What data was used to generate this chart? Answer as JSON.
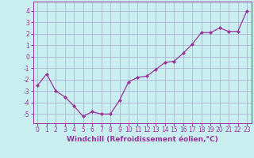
{
  "x": [
    0,
    1,
    2,
    3,
    4,
    5,
    6,
    7,
    8,
    9,
    10,
    11,
    12,
    13,
    14,
    15,
    16,
    17,
    18,
    19,
    20,
    21,
    22,
    23
  ],
  "y": [
    -2.5,
    -1.5,
    -3.0,
    -3.5,
    -4.3,
    -5.2,
    -4.8,
    -5.0,
    -5.0,
    -3.8,
    -2.2,
    -1.8,
    -1.7,
    -1.1,
    -0.5,
    -0.4,
    0.3,
    1.1,
    2.1,
    2.1,
    2.5,
    2.2,
    2.2,
    4.0
  ],
  "line_color": "#993399",
  "marker": "D",
  "marker_size": 2.0,
  "bg_color": "#c8eef0",
  "grid_color": "#aaaacc",
  "xlabel": "Windchill (Refroidissement éolien,°C)",
  "ylim": [
    -5.8,
    4.8
  ],
  "xlim": [
    -0.5,
    23.5
  ],
  "yticks": [
    -5,
    -4,
    -3,
    -2,
    -1,
    0,
    1,
    2,
    3,
    4
  ],
  "xticks": [
    0,
    1,
    2,
    3,
    4,
    5,
    6,
    7,
    8,
    9,
    10,
    11,
    12,
    13,
    14,
    15,
    16,
    17,
    18,
    19,
    20,
    21,
    22,
    23
  ],
  "axis_color": "#993399",
  "label_fontsize": 6.5,
  "tick_fontsize": 5.5
}
